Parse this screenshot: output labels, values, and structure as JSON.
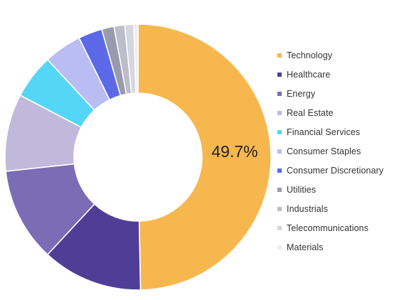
{
  "chart_data": {
    "type": "pie",
    "donut": true,
    "center_label": "49.7%",
    "legend_position": "right",
    "title": "",
    "categories": [
      "Technology",
      "Healthcare",
      "Energy",
      "Real Estate",
      "Financial Services",
      "Consumer Staples",
      "Consumer Discretionary",
      "Utilities",
      "Industrials",
      "Telecommunications",
      "Materials"
    ],
    "values": [
      49.7,
      12.2,
      11.4,
      9.4,
      5.4,
      4.6,
      2.9,
      1.5,
      1.3,
      1.1,
      0.5
    ],
    "colors": [
      "#F7B74F",
      "#4E3E96",
      "#7A6CB5",
      "#C0B9DB",
      "#56D6F6",
      "#B9BDF4",
      "#5B69E9",
      "#9A9AAE",
      "#BDBDC9",
      "#D6D6DE",
      "#EDEDF1"
    ]
  }
}
